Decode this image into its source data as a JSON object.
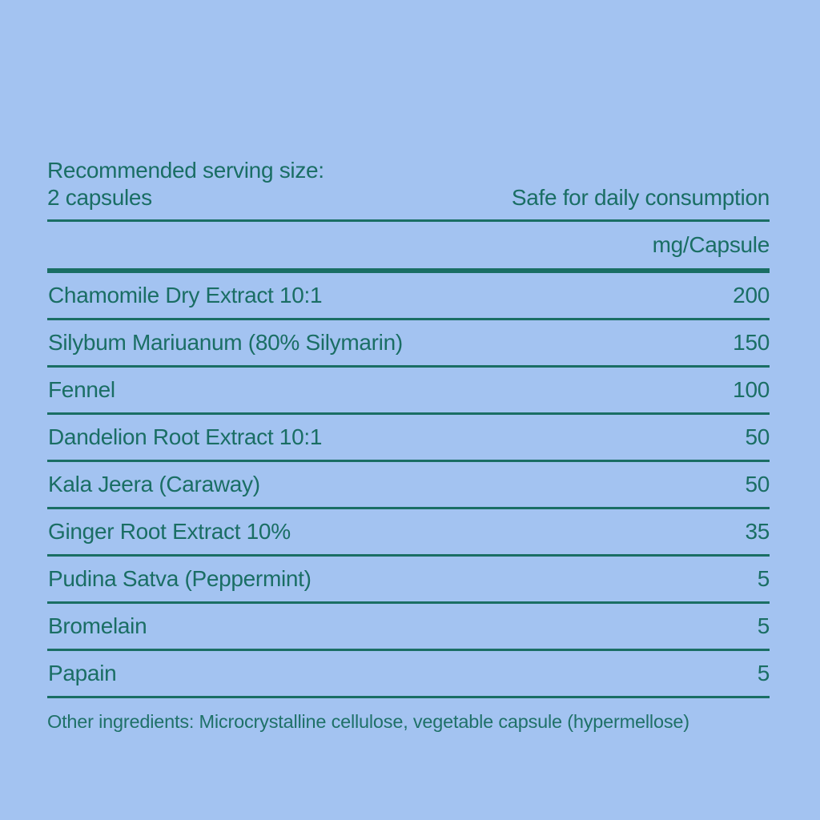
{
  "serving": {
    "line1": "Recommended serving size:",
    "line2": "2 capsules"
  },
  "safety_note": "Safe for daily consumption",
  "unit_header": "mg/Capsule",
  "ingredients": [
    {
      "name": "Chamomile Dry Extract 10:1",
      "value": "200"
    },
    {
      "name": "Silybum Mariuanum (80% Silymarin)",
      "value": "150"
    },
    {
      "name": "Fennel",
      "value": "100"
    },
    {
      "name": "Dandelion Root Extract 10:1",
      "value": "50"
    },
    {
      "name": "Kala Jeera (Caraway)",
      "value": "50"
    },
    {
      "name": "Ginger Root Extract 10%",
      "value": "35"
    },
    {
      "name": "Pudina Satva (Peppermint)",
      "value": "5"
    },
    {
      "name": "Bromelain",
      "value": "5"
    },
    {
      "name": "Papain",
      "value": "5"
    }
  ],
  "footnote": "Other ingredients: Microcrystalline cellulose, vegetable capsule (hypermellose)",
  "colors": {
    "background": "#a3c3f1",
    "text": "#1a6e64"
  }
}
